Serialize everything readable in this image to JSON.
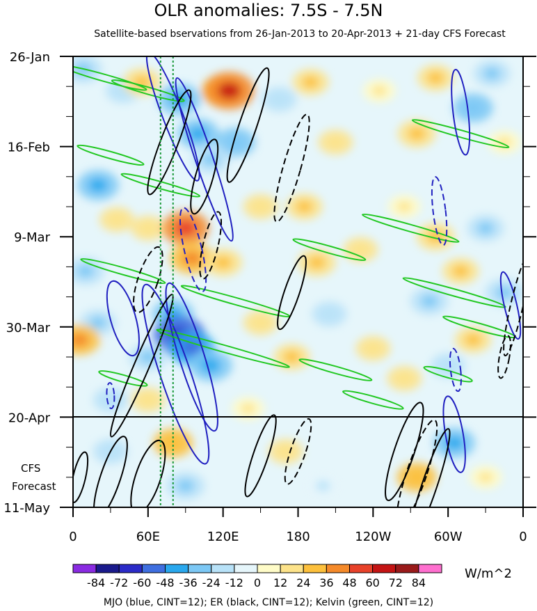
{
  "chart_data": {
    "type": "heatmap",
    "title": "OLR anomalies: 7.5S - 7.5N",
    "subtitle": "Satellite-based bservations from 26-Jan-2013 to 20-Apr-2013 + 21-day CFS Forecast",
    "x_tick_labels": [
      "0",
      "60E",
      "120E",
      "180",
      "120W",
      "60W",
      "0"
    ],
    "x_ticks_deg_east": [
      0,
      60,
      120,
      180,
      240,
      300,
      360
    ],
    "y_tick_labels": [
      "26-Jan",
      "16-Feb",
      "9-Mar",
      "30-Mar",
      "20-Apr",
      "11-May"
    ],
    "y_ticks_day": [
      0,
      21,
      42,
      63,
      84,
      105
    ],
    "forecast_start_label": "20-Apr",
    "forecast_label_line1": "CFS",
    "forecast_label_line2": "Forecast",
    "colorbar_levels": [
      -84,
      -72,
      -60,
      -48,
      -36,
      -24,
      -12,
      0,
      12,
      24,
      36,
      48,
      60,
      72,
      84
    ],
    "colorbar_labels": [
      "-84",
      "-72",
      "-60",
      "-48",
      "-36",
      "-24",
      "-12",
      "0",
      "12",
      "24",
      "36",
      "48",
      "60",
      "72",
      "84"
    ],
    "colorbar_colors": [
      "#8a2be2",
      "#1a1a8c",
      "#2b2bc8",
      "#3f6fe0",
      "#2aa8ee",
      "#7cc8f5",
      "#b8e2f8",
      "#e6f6fb",
      "#fffcc8",
      "#fde38a",
      "#fdc03c",
      "#f58a2a",
      "#e8422a",
      "#c41414",
      "#9a1a1a",
      "#ff6fcf"
    ],
    "units": "W/m^2",
    "footnote": "MJO (blue, CINT=12); ER (black, CINT=12); Kelvin (green, CINT=12)",
    "overlays": [
      {
        "name": "MJO",
        "color": "#2020c0",
        "contour_interval": 12
      },
      {
        "name": "ER",
        "color": "#000000",
        "contour_interval": 12
      },
      {
        "name": "Kelvin",
        "color": "#22c822",
        "contour_interval": 12
      }
    ],
    "vertical_reference_lines_deg_east": [
      70,
      80
    ],
    "vertical_reference_color": "#1a9a3a",
    "anomaly_blobs": [
      {
        "lon": 8,
        "day": 3,
        "value": -30
      },
      {
        "lon": 40,
        "day": 8,
        "value": -20
      },
      {
        "lon": 55,
        "day": 6,
        "value": 30
      },
      {
        "lon": 85,
        "day": 10,
        "value": -45
      },
      {
        "lon": 120,
        "day": 8,
        "value": 45
      },
      {
        "lon": 125,
        "day": 8,
        "value": 65
      },
      {
        "lon": 100,
        "day": 18,
        "value": -40
      },
      {
        "lon": 130,
        "day": 20,
        "value": -35
      },
      {
        "lon": 110,
        "day": 24,
        "value": -30
      },
      {
        "lon": 165,
        "day": 10,
        "value": -20
      },
      {
        "lon": 190,
        "day": 6,
        "value": 25
      },
      {
        "lon": 210,
        "day": 20,
        "value": 20
      },
      {
        "lon": 245,
        "day": 8,
        "value": 15
      },
      {
        "lon": 290,
        "day": 5,
        "value": 25
      },
      {
        "lon": 275,
        "day": 18,
        "value": 30
      },
      {
        "lon": 320,
        "day": 12,
        "value": -35
      },
      {
        "lon": 335,
        "day": 4,
        "value": -25
      },
      {
        "lon": 345,
        "day": 20,
        "value": 15
      },
      {
        "lon": 20,
        "day": 30,
        "value": -40
      },
      {
        "lon": 35,
        "day": 38,
        "value": 20
      },
      {
        "lon": 10,
        "day": 50,
        "value": -30
      },
      {
        "lon": 60,
        "day": 40,
        "value": 20
      },
      {
        "lon": 90,
        "day": 40,
        "value": 55
      },
      {
        "lon": 95,
        "day": 47,
        "value": 45
      },
      {
        "lon": 120,
        "day": 48,
        "value": 30
      },
      {
        "lon": 150,
        "day": 35,
        "value": 20
      },
      {
        "lon": 185,
        "day": 35,
        "value": 25
      },
      {
        "lon": 195,
        "day": 48,
        "value": 30
      },
      {
        "lon": 230,
        "day": 45,
        "value": 20
      },
      {
        "lon": 265,
        "day": 35,
        "value": 15
      },
      {
        "lon": 290,
        "day": 42,
        "value": 30
      },
      {
        "lon": 285,
        "day": 57,
        "value": -30
      },
      {
        "lon": 310,
        "day": 50,
        "value": 25
      },
      {
        "lon": 330,
        "day": 40,
        "value": -25
      },
      {
        "lon": 345,
        "day": 55,
        "value": -30
      },
      {
        "lon": 20,
        "day": 62,
        "value": -25
      },
      {
        "lon": 5,
        "day": 66,
        "value": 40
      },
      {
        "lon": 80,
        "day": 60,
        "value": -40
      },
      {
        "lon": 85,
        "day": 65,
        "value": -70
      },
      {
        "lon": 95,
        "day": 68,
        "value": -55
      },
      {
        "lon": 110,
        "day": 72,
        "value": -45
      },
      {
        "lon": 60,
        "day": 70,
        "value": -30
      },
      {
        "lon": 150,
        "day": 62,
        "value": 20
      },
      {
        "lon": 175,
        "day": 70,
        "value": 25
      },
      {
        "lon": 205,
        "day": 60,
        "value": -20
      },
      {
        "lon": 240,
        "day": 68,
        "value": 20
      },
      {
        "lon": 265,
        "day": 75,
        "value": 20
      },
      {
        "lon": 300,
        "day": 72,
        "value": -20
      },
      {
        "lon": 320,
        "day": 66,
        "value": 25
      },
      {
        "lon": 30,
        "day": 80,
        "value": -20
      },
      {
        "lon": 60,
        "day": 80,
        "value": 20
      },
      {
        "lon": 140,
        "day": 82,
        "value": 15
      },
      {
        "lon": 30,
        "day": 92,
        "value": -20
      },
      {
        "lon": 80,
        "day": 90,
        "value": 35
      },
      {
        "lon": 90,
        "day": 100,
        "value": -30
      },
      {
        "lon": 170,
        "day": 92,
        "value": 20
      },
      {
        "lon": 200,
        "day": 100,
        "value": -15
      },
      {
        "lon": 275,
        "day": 98,
        "value": 35
      },
      {
        "lon": 305,
        "day": 90,
        "value": -40
      },
      {
        "lon": 330,
        "day": 98,
        "value": 15
      }
    ],
    "mjo_contours": [
      {
        "lon": 80,
        "day": 14,
        "dlon": 8,
        "dday": 16,
        "tilt": 0.7,
        "dashed": false
      },
      {
        "lon": 105,
        "day": 24,
        "dlon": 7,
        "dday": 20,
        "tilt": 0.6,
        "dashed": false
      },
      {
        "lon": 82,
        "day": 74,
        "dlon": 12,
        "dday": 22,
        "tilt": 0.6,
        "dashed": false
      },
      {
        "lon": 95,
        "day": 70,
        "dlon": 10,
        "dday": 18,
        "tilt": 0.55,
        "dashed": false
      },
      {
        "lon": 40,
        "day": 61,
        "dlon": 10,
        "dday": 9,
        "tilt": 0.5,
        "dashed": false
      },
      {
        "lon": 96,
        "day": 45,
        "dlon": 7,
        "dday": 10,
        "tilt": 0.4,
        "dashed": true
      },
      {
        "lon": 310,
        "day": 13,
        "dlon": 6,
        "dday": 10,
        "tilt": 0.2,
        "dashed": false
      },
      {
        "lon": 293,
        "day": 36,
        "dlon": 5,
        "dday": 8,
        "tilt": 0.2,
        "dashed": true
      },
      {
        "lon": 350,
        "day": 58,
        "dlon": 5,
        "dday": 8,
        "tilt": 0.4,
        "dashed": false
      },
      {
        "lon": 305,
        "day": 88,
        "dlon": 7,
        "dday": 9,
        "tilt": 0.3,
        "dashed": false
      },
      {
        "lon": 306,
        "day": 73,
        "dlon": 4,
        "dday": 5,
        "tilt": 0.2,
        "dashed": true
      },
      {
        "lon": 30,
        "day": 79,
        "dlon": 3,
        "dday": 3,
        "tilt": 0.1,
        "dashed": true
      }
    ],
    "er_contours": [
      {
        "lon": 77,
        "day": 20,
        "dlon": 7,
        "dday": 13,
        "tilt": -0.7,
        "dashed": false
      },
      {
        "lon": 140,
        "day": 16,
        "dlon": 7,
        "dday": 14,
        "tilt": -0.6,
        "dashed": false
      },
      {
        "lon": 175,
        "day": 26,
        "dlon": 7,
        "dday": 13,
        "tilt": -0.5,
        "dashed": true
      },
      {
        "lon": 105,
        "day": 28,
        "dlon": 7,
        "dday": 9,
        "tilt": -0.5,
        "dashed": false
      },
      {
        "lon": 110,
        "day": 44,
        "dlon": 6,
        "dday": 8,
        "tilt": -0.4,
        "dashed": true
      },
      {
        "lon": 60,
        "day": 52,
        "dlon": 8,
        "dday": 8,
        "tilt": -0.6,
        "dashed": true
      },
      {
        "lon": 175,
        "day": 55,
        "dlon": 6,
        "dday": 9,
        "tilt": -0.6,
        "dashed": false
      },
      {
        "lon": 55,
        "day": 72,
        "dlon": 6,
        "dday": 18,
        "tilt": -0.8,
        "dashed": false
      },
      {
        "lon": 60,
        "day": 98,
        "dlon": 10,
        "dday": 9,
        "tilt": -0.6,
        "dashed": false
      },
      {
        "lon": 30,
        "day": 98,
        "dlon": 8,
        "dday": 10,
        "tilt": -0.6,
        "dashed": false
      },
      {
        "lon": 150,
        "day": 93,
        "dlon": 6,
        "dday": 10,
        "tilt": -0.6,
        "dashed": false
      },
      {
        "lon": 180,
        "day": 92,
        "dlon": 6,
        "dday": 8,
        "tilt": -0.6,
        "dashed": true
      },
      {
        "lon": 265,
        "day": 92,
        "dlon": 8,
        "dday": 12,
        "tilt": -0.6,
        "dashed": false
      },
      {
        "lon": 275,
        "day": 97,
        "dlon": 8,
        "dday": 13,
        "tilt": -0.6,
        "dashed": true
      },
      {
        "lon": 285,
        "day": 100,
        "dlon": 6,
        "dday": 14,
        "tilt": -0.6,
        "dashed": false
      },
      {
        "lon": 355,
        "day": 58,
        "dlon": 5,
        "dday": 12,
        "tilt": -0.4,
        "dashed": true
      },
      {
        "lon": 5,
        "day": 98,
        "dlon": 5,
        "dday": 6,
        "tilt": -0.4,
        "dashed": false
      },
      {
        "lon": 345,
        "day": 70,
        "dlon": 4,
        "dday": 5,
        "tilt": -0.3,
        "dashed": true
      }
    ],
    "kelvin_bands": [
      {
        "lon": 25,
        "day": 5,
        "len": 70,
        "width": 3
      },
      {
        "lon": 60,
        "day": 8,
        "len": 60,
        "width": 3
      },
      {
        "lon": 30,
        "day": 23,
        "len": 55,
        "width": 3
      },
      {
        "lon": 70,
        "day": 30,
        "len": 65,
        "width": 3
      },
      {
        "lon": 310,
        "day": 18,
        "len": 80,
        "width": 3
      },
      {
        "lon": 270,
        "day": 40,
        "len": 80,
        "width": 3
      },
      {
        "lon": 205,
        "day": 45,
        "len": 60,
        "width": 3
      },
      {
        "lon": 40,
        "day": 50,
        "len": 70,
        "width": 3
      },
      {
        "lon": 305,
        "day": 55,
        "len": 85,
        "width": 3
      },
      {
        "lon": 130,
        "day": 57,
        "len": 90,
        "width": 3
      },
      {
        "lon": 120,
        "day": 68,
        "len": 110,
        "width": 3
      },
      {
        "lon": 210,
        "day": 73,
        "len": 60,
        "width": 3
      },
      {
        "lon": 325,
        "day": 63,
        "len": 60,
        "width": 3
      },
      {
        "lon": 40,
        "day": 75,
        "len": 40,
        "width": 3
      },
      {
        "lon": 300,
        "day": 74,
        "len": 40,
        "width": 3
      },
      {
        "lon": 240,
        "day": 80,
        "len": 50,
        "width": 3
      }
    ]
  }
}
